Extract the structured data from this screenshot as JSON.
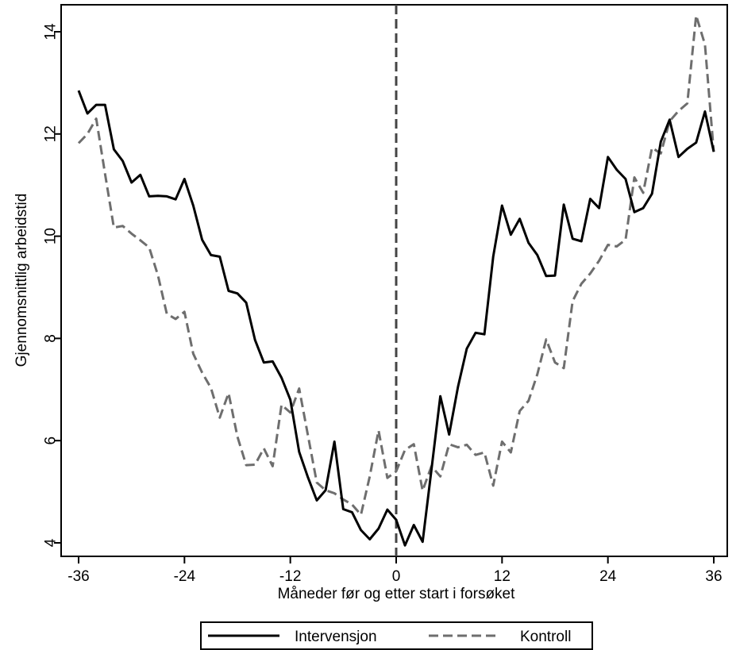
{
  "chart_data": {
    "type": "line",
    "title": "",
    "xlabel": "Måneder før og etter start i forsøket",
    "ylabel": "Gjennomsnittlig arbeidstid",
    "xlim": [
      -36,
      36
    ],
    "ylim": [
      3.8,
      14.5
    ],
    "xticks": [
      -36,
      -24,
      -12,
      0,
      12,
      24,
      36
    ],
    "yticks": [
      4,
      6,
      8,
      10,
      12,
      14
    ],
    "grid": false,
    "reference_line": {
      "x": 0,
      "style": "dashed"
    },
    "legend_position": "bottom",
    "colors": {
      "intervention": "#000000",
      "control": "#6e6e6e"
    },
    "series": [
      {
        "name": "Intervensjon",
        "style": "solid",
        "x": [
          -36,
          -35,
          -34,
          -33,
          -32,
          -31,
          -30,
          -29,
          -28,
          -27,
          -26,
          -25,
          -24,
          -23,
          -22,
          -21,
          -20,
          -19,
          -18,
          -17,
          -16,
          -15,
          -14,
          -13,
          -12,
          -11,
          -10,
          -9,
          -8,
          -7,
          -6,
          -5,
          -4,
          -3,
          -2,
          -1,
          0,
          1,
          2,
          3,
          4,
          5,
          6,
          7,
          8,
          9,
          10,
          11,
          12,
          13,
          14,
          15,
          16,
          17,
          18,
          19,
          20,
          21,
          22,
          23,
          24,
          25,
          26,
          27,
          28,
          29,
          30,
          31,
          32,
          33,
          34,
          35,
          36
        ],
        "values": [
          12.85,
          12.4,
          12.57,
          12.57,
          11.7,
          11.47,
          11.05,
          11.2,
          10.78,
          10.79,
          10.78,
          10.72,
          11.12,
          10.6,
          9.93,
          9.63,
          9.6,
          8.93,
          8.88,
          8.7,
          7.97,
          7.53,
          7.55,
          7.23,
          6.8,
          5.78,
          5.28,
          4.83,
          5.03,
          5.98,
          4.66,
          4.6,
          4.25,
          4.07,
          4.28,
          4.65,
          4.45,
          3.95,
          4.35,
          4.02,
          5.43,
          6.87,
          6.12,
          7.05,
          7.8,
          8.11,
          8.08,
          9.6,
          10.6,
          10.03,
          10.34,
          9.87,
          9.63,
          9.22,
          9.23,
          10.62,
          9.95,
          9.9,
          10.73,
          10.55,
          11.55,
          11.3,
          11.12,
          10.47,
          10.55,
          10.83,
          11.85,
          12.28,
          11.55,
          11.71,
          11.83,
          12.44,
          11.65
        ]
      },
      {
        "name": "Kontroll",
        "style": "dashed",
        "x": [
          -36,
          -35,
          -34,
          -33,
          -32,
          -31,
          -30,
          -29,
          -28,
          -27,
          -26,
          -25,
          -24,
          -23,
          -22,
          -21,
          -20,
          -19,
          -18,
          -17,
          -16,
          -15,
          -14,
          -13,
          -12,
          -11,
          -10,
          -9,
          -8,
          -7,
          -6,
          -5,
          -4,
          -3,
          -2,
          -1,
          0,
          1,
          2,
          3,
          4,
          5,
          6,
          7,
          8,
          9,
          10,
          11,
          12,
          13,
          14,
          15,
          16,
          17,
          18,
          19,
          20,
          21,
          22,
          23,
          24,
          25,
          26,
          27,
          28,
          29,
          30,
          31,
          32,
          33,
          34,
          35,
          36
        ],
        "values": [
          11.82,
          12.0,
          12.3,
          11.22,
          10.17,
          10.2,
          10.05,
          9.92,
          9.78,
          9.23,
          8.48,
          8.38,
          8.52,
          7.7,
          7.33,
          7.03,
          6.45,
          6.93,
          6.08,
          5.52,
          5.53,
          5.85,
          5.5,
          6.7,
          6.55,
          7.02,
          6.1,
          5.18,
          5.03,
          4.97,
          4.85,
          4.75,
          4.55,
          5.3,
          6.2,
          5.27,
          5.4,
          5.82,
          5.93,
          5.02,
          5.5,
          5.3,
          5.93,
          5.87,
          5.92,
          5.72,
          5.77,
          5.12,
          5.98,
          5.77,
          6.58,
          6.78,
          7.3,
          7.98,
          7.53,
          7.42,
          8.73,
          9.07,
          9.27,
          9.52,
          9.83,
          9.8,
          9.93,
          11.15,
          10.85,
          11.73,
          11.62,
          12.25,
          12.45,
          12.6,
          14.32,
          13.75,
          11.65
        ]
      }
    ]
  }
}
